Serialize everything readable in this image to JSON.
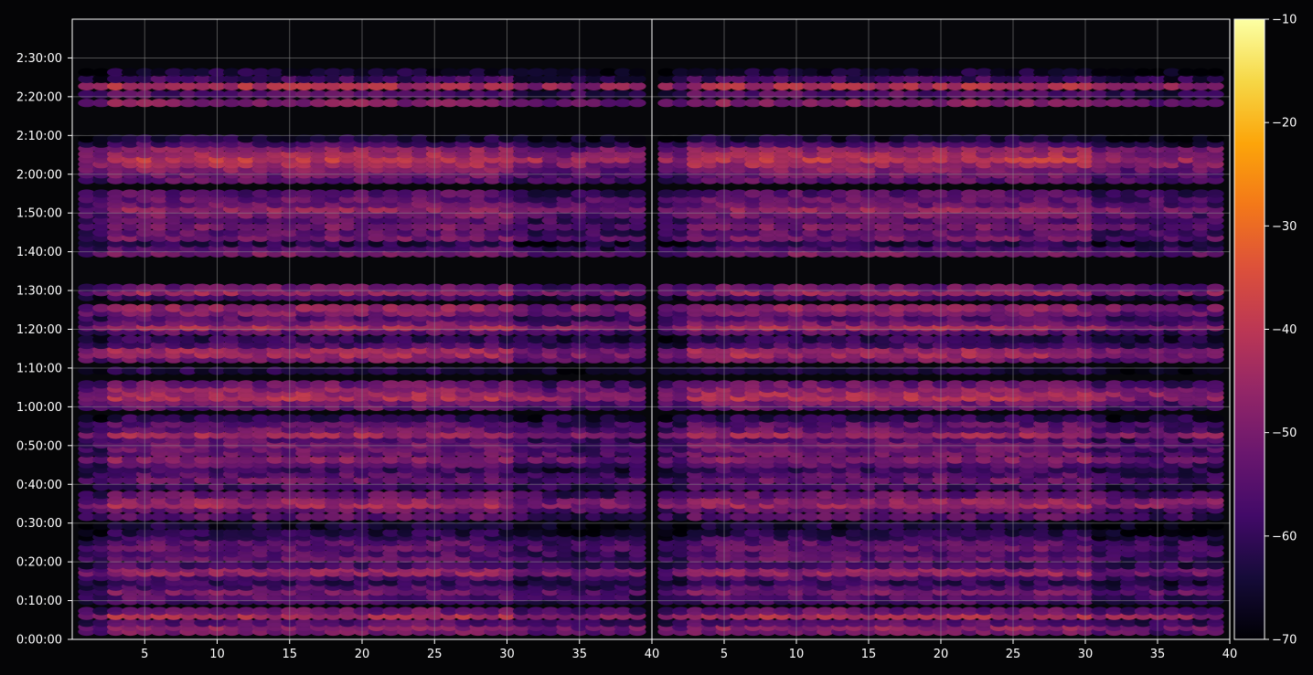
{
  "chart_data": {
    "type": "heatmap",
    "title": "",
    "xlabel": "",
    "ylabel": "",
    "grid": true,
    "colormap": "inferno",
    "background": "#050506",
    "panels": [
      {
        "x_ticks": [
          "5",
          "10",
          "15",
          "20",
          "25",
          "30",
          "35",
          "40"
        ],
        "xlim": [
          1,
          40
        ]
      },
      {
        "x_ticks": [
          "5",
          "10",
          "15",
          "20",
          "25",
          "30",
          "35",
          "40"
        ],
        "xlim": [
          1,
          40
        ]
      }
    ],
    "y_ticks": [
      "0:00:00",
      "0:10:00",
      "0:20:00",
      "0:30:00",
      "0:40:00",
      "0:50:00",
      "1:00:00",
      "1:10:00",
      "1:20:00",
      "1:30:00",
      "1:40:00",
      "1:50:00",
      "2:00:00",
      "2:10:00",
      "2:20:00",
      "2:30:00"
    ],
    "ylim_seconds": [
      0,
      9600
    ],
    "colorbar": {
      "min": -70,
      "max": -10,
      "ticks": [
        "−10",
        "−20",
        "−30",
        "−40",
        "−50",
        "−60",
        "−70"
      ],
      "tick_values": [
        -10,
        -20,
        -30,
        -40,
        -50,
        -60,
        -70
      ]
    },
    "rows": [
      {
        "y_min": 2.0,
        "level": -50
      },
      {
        "y_min": 3.2,
        "level": -47
      },
      {
        "y_min": 4.3,
        "level": -55
      },
      {
        "y_min": 6.1,
        "level": -42
      },
      {
        "y_min": 7.3,
        "level": -52
      },
      {
        "y_min": 9.9,
        "level": -57
      },
      {
        "y_min": 10.9,
        "level": -55
      },
      {
        "y_min": 12.3,
        "level": -50
      },
      {
        "y_min": 13.6,
        "level": -56
      },
      {
        "y_min": 14.8,
        "level": -60
      },
      {
        "y_min": 16.1,
        "level": -55
      },
      {
        "y_min": 17.2,
        "level": -46
      },
      {
        "y_min": 18.3,
        "level": -48
      },
      {
        "y_min": 19.1,
        "level": -57
      },
      {
        "y_min": 20.9,
        "level": -53
      },
      {
        "y_min": 22.2,
        "level": -55
      },
      {
        "y_min": 23.6,
        "level": -52
      },
      {
        "y_min": 25.1,
        "level": -54
      },
      {
        "y_min": 26.4,
        "level": -59
      },
      {
        "y_min": 27.5,
        "level": -62
      },
      {
        "y_min": 29.3,
        "level": -64
      },
      {
        "y_min": 31.6,
        "level": -54
      },
      {
        "y_min": 33.5,
        "level": -52
      },
      {
        "y_min": 34.7,
        "level": -44
      },
      {
        "y_min": 35.8,
        "level": -47
      },
      {
        "y_min": 37.3,
        "level": -53
      },
      {
        "y_min": 39.4,
        "level": -57
      },
      {
        "y_min": 41.1,
        "level": -52
      },
      {
        "y_min": 42.6,
        "level": -55
      },
      {
        "y_min": 43.9,
        "level": -59
      },
      {
        "y_min": 45.2,
        "level": -54
      },
      {
        "y_min": 46.4,
        "level": -48
      },
      {
        "y_min": 48.0,
        "level": -52
      },
      {
        "y_min": 49.2,
        "level": -53
      },
      {
        "y_min": 50.3,
        "level": -51
      },
      {
        "y_min": 51.6,
        "level": -55
      },
      {
        "y_min": 52.8,
        "level": -44
      },
      {
        "y_min": 54.2,
        "level": -52
      },
      {
        "y_min": 55.6,
        "level": -54
      },
      {
        "y_min": 57.0,
        "level": -60
      },
      {
        "y_min": 60.0,
        "level": -53
      },
      {
        "y_min": 61.2,
        "level": -50
      },
      {
        "y_min": 62.4,
        "level": -42
      },
      {
        "y_min": 63.5,
        "level": -44
      },
      {
        "y_min": 64.7,
        "level": -47
      },
      {
        "y_min": 65.8,
        "level": -52
      },
      {
        "y_min": 69.3,
        "level": -63
      },
      {
        "y_min": 72.3,
        "level": -50
      },
      {
        "y_min": 73.5,
        "level": -44
      },
      {
        "y_min": 74.7,
        "level": -45
      },
      {
        "y_min": 76.0,
        "level": -57
      },
      {
        "y_min": 77.4,
        "level": -60
      },
      {
        "y_min": 79.4,
        "level": -54
      },
      {
        "y_min": 80.6,
        "level": -43
      },
      {
        "y_min": 81.8,
        "level": -51
      },
      {
        "y_min": 83.0,
        "level": -55
      },
      {
        "y_min": 84.3,
        "level": -49
      },
      {
        "y_min": 85.5,
        "level": -47
      },
      {
        "y_min": 88.3,
        "level": -58
      },
      {
        "y_min": 89.6,
        "level": -45
      },
      {
        "y_min": 90.7,
        "level": -52
      },
      {
        "y_min": 99.6,
        "level": -50
      },
      {
        "y_min": 100.9,
        "level": -56
      },
      {
        "y_min": 102.2,
        "level": -62
      },
      {
        "y_min": 103.6,
        "level": -51
      },
      {
        "y_min": 104.9,
        "level": -54
      },
      {
        "y_min": 106.5,
        "level": -50
      },
      {
        "y_min": 108.1,
        "level": -54
      },
      {
        "y_min": 109.6,
        "level": -50
      },
      {
        "y_min": 111.0,
        "level": -46
      },
      {
        "y_min": 112.3,
        "level": -52
      },
      {
        "y_min": 113.6,
        "level": -53
      },
      {
        "y_min": 115.0,
        "level": -55
      },
      {
        "y_min": 118.5,
        "level": -54
      },
      {
        "y_min": 120.0,
        "level": -51
      },
      {
        "y_min": 121.3,
        "level": -48
      },
      {
        "y_min": 122.6,
        "level": -44
      },
      {
        "y_min": 123.9,
        "level": -40
      },
      {
        "y_min": 125.2,
        "level": -44
      },
      {
        "y_min": 126.6,
        "level": -47
      },
      {
        "y_min": 127.9,
        "level": -57
      },
      {
        "y_min": 129.2,
        "level": -64
      },
      {
        "y_min": 138.4,
        "level": -48
      },
      {
        "y_min": 140.6,
        "level": -55
      },
      {
        "y_min": 142.7,
        "level": -42
      },
      {
        "y_min": 144.6,
        "level": -58
      },
      {
        "y_min": 146.3,
        "level": -64
      }
    ]
  }
}
